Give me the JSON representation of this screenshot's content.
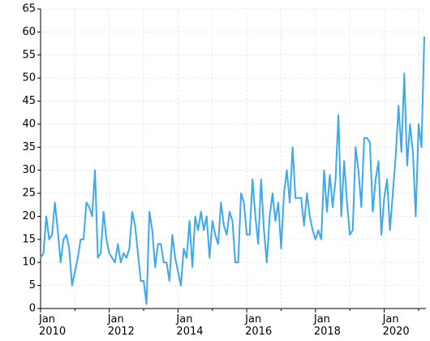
{
  "chart_data": {
    "type": "line",
    "x": [
      "2010-01",
      "2010-02",
      "2010-03",
      "2010-04",
      "2010-05",
      "2010-06",
      "2010-07",
      "2010-08",
      "2010-09",
      "2010-10",
      "2010-11",
      "2010-12",
      "2011-01",
      "2011-02",
      "2011-03",
      "2011-04",
      "2011-05",
      "2011-06",
      "2011-07",
      "2011-08",
      "2011-09",
      "2011-10",
      "2011-11",
      "2011-12",
      "2012-01",
      "2012-02",
      "2012-03",
      "2012-04",
      "2012-05",
      "2012-06",
      "2012-07",
      "2012-08",
      "2012-09",
      "2012-10",
      "2012-11",
      "2012-12",
      "2013-01",
      "2013-02",
      "2013-03",
      "2013-04",
      "2013-05",
      "2013-06",
      "2013-07",
      "2013-08",
      "2013-09",
      "2013-10",
      "2013-11",
      "2013-12",
      "2014-01",
      "2014-02",
      "2014-03",
      "2014-04",
      "2014-05",
      "2014-06",
      "2014-07",
      "2014-08",
      "2014-09",
      "2014-10",
      "2014-11",
      "2014-12",
      "2015-01",
      "2015-02",
      "2015-03",
      "2015-04",
      "2015-05",
      "2015-06",
      "2015-07",
      "2015-08",
      "2015-09",
      "2015-10",
      "2015-11",
      "2015-12",
      "2016-01",
      "2016-02",
      "2016-03",
      "2016-04",
      "2016-05",
      "2016-06",
      "2016-07",
      "2016-08",
      "2016-09",
      "2016-10",
      "2016-11",
      "2016-12",
      "2017-01",
      "2017-02",
      "2017-03",
      "2017-04",
      "2017-05",
      "2017-06",
      "2017-07",
      "2017-08",
      "2017-09",
      "2017-10",
      "2017-11",
      "2017-12",
      "2018-01",
      "2018-02",
      "2018-03",
      "2018-04",
      "2018-05",
      "2018-06",
      "2018-07",
      "2018-08",
      "2018-09",
      "2018-10",
      "2018-11",
      "2018-12",
      "2019-01",
      "2019-02",
      "2019-03",
      "2019-04",
      "2019-05",
      "2019-06",
      "2019-07",
      "2019-08",
      "2019-09",
      "2019-10",
      "2019-11",
      "2019-12",
      "2020-01",
      "2020-02",
      "2020-03",
      "2020-04",
      "2020-05",
      "2020-06",
      "2020-07",
      "2020-08",
      "2020-09",
      "2020-10",
      "2020-11",
      "2020-12",
      "2021-01",
      "2021-02",
      "2021-03"
    ],
    "series": [
      {
        "color": "#3ba8f0",
        "values": [
          11,
          12,
          20,
          15,
          16,
          23,
          17,
          10,
          15,
          16,
          13,
          5,
          8,
          11,
          15,
          15,
          23,
          22,
          20,
          30,
          11,
          12,
          21,
          15,
          12,
          11,
          10,
          14,
          10,
          12,
          11,
          13,
          21,
          18,
          12,
          6,
          6,
          1,
          21,
          17,
          9,
          14,
          14,
          10,
          10,
          6,
          16,
          11,
          8,
          5,
          13,
          11,
          19,
          9,
          20,
          17,
          21,
          17,
          20,
          11,
          19,
          16,
          14,
          23,
          18,
          16,
          21,
          19,
          10,
          10,
          25,
          23,
          16,
          16,
          28,
          20,
          14,
          28,
          17,
          10,
          20,
          25,
          19,
          23,
          13,
          25,
          30,
          23,
          35,
          24,
          24,
          24,
          18,
          25,
          20,
          17,
          15,
          17,
          15,
          30,
          21,
          29,
          22,
          28,
          42,
          20,
          32,
          23,
          16,
          17,
          35,
          30,
          22,
          37,
          37,
          36,
          21,
          28,
          32,
          16,
          24,
          28,
          17,
          25,
          33,
          44,
          34,
          51,
          31,
          40,
          34,
          20,
          40,
          35,
          59
        ]
      }
    ],
    "xlim": [
      "2010-01",
      "2021-03"
    ],
    "xticks": [
      {
        "value": "2010-01",
        "label": "Jan\n2010"
      },
      {
        "value": "2012-01",
        "label": "Jan\n2012"
      },
      {
        "value": "2014-01",
        "label": "Jan\n2014"
      },
      {
        "value": "2016-01",
        "label": "Jan\n2016"
      },
      {
        "value": "2018-01",
        "label": "Jan\n2018"
      },
      {
        "value": "2020-01",
        "label": "Jan\n2020"
      }
    ],
    "xminor": [
      "2011-01",
      "2013-01",
      "2015-01",
      "2017-01",
      "2019-01",
      "2021-01"
    ],
    "ylim": [
      0,
      65
    ],
    "yticks": [
      0,
      5,
      10,
      15,
      20,
      25,
      30,
      35,
      40,
      45,
      50,
      55,
      60,
      65
    ],
    "grid": true
  }
}
